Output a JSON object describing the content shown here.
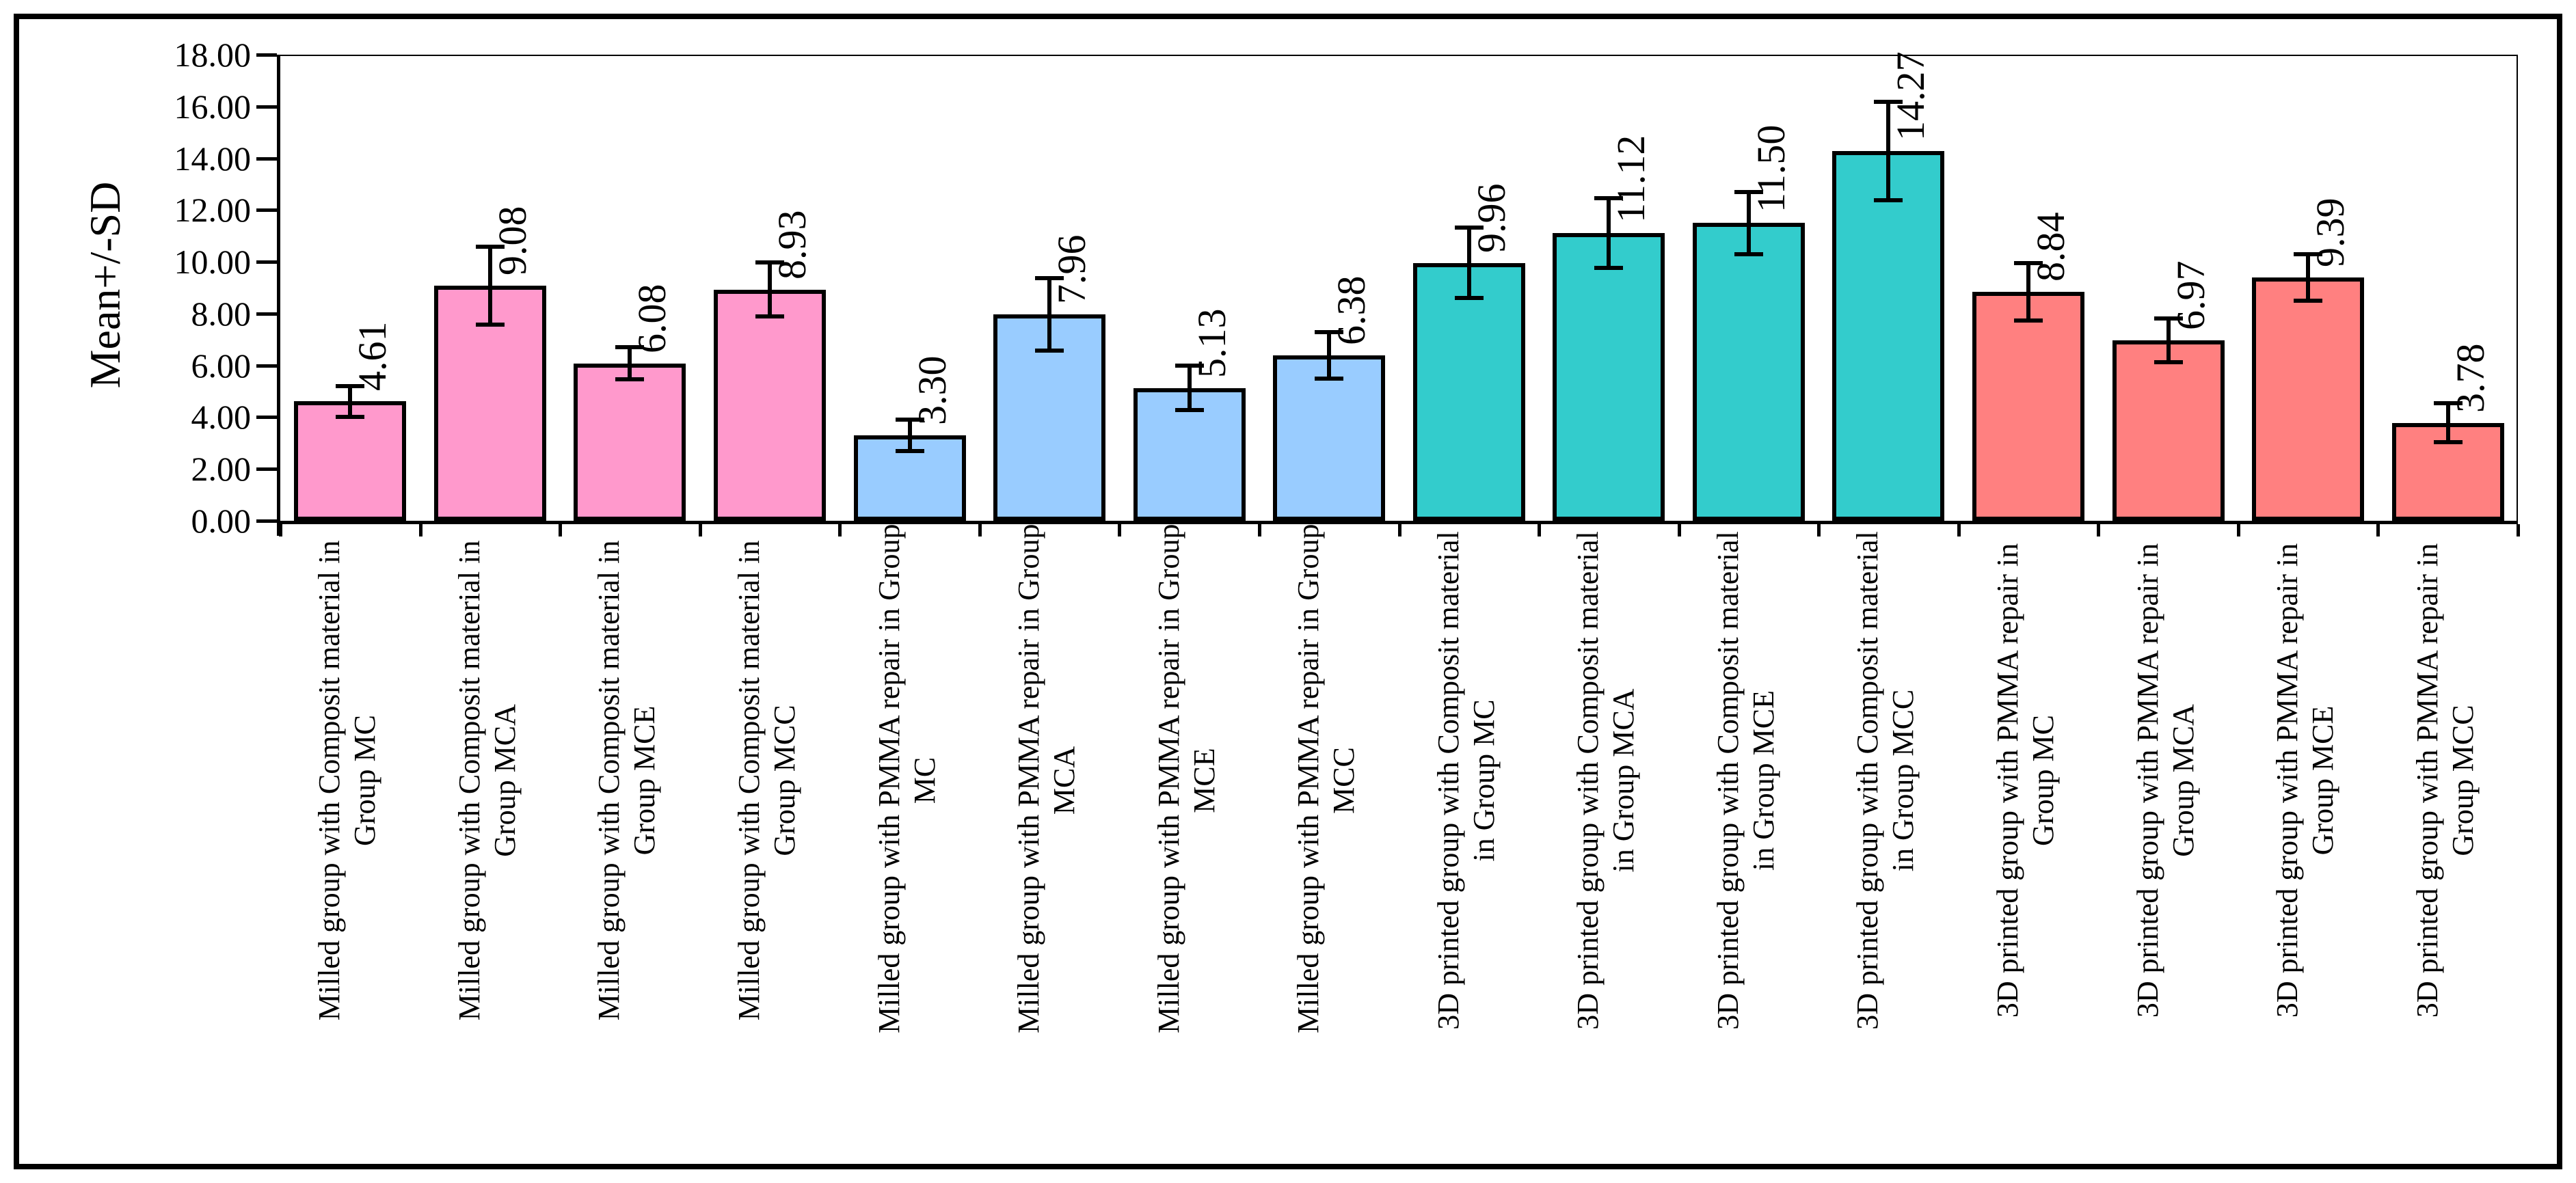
{
  "figure": {
    "background": "#FFFFFF",
    "border_color": "#000000"
  },
  "chart_data": {
    "type": "bar",
    "title": "",
    "xlabel": "",
    "ylabel": "Mean+/-SD",
    "ylim": [
      0,
      18
    ],
    "ytick_step": 2,
    "ytick_labels": [
      "0.00",
      "2.00",
      "4.00",
      "6.00",
      "8.00",
      "10.00",
      "12.00",
      "14.00",
      "16.00",
      "18.00"
    ],
    "grid": "off",
    "legend": "none",
    "error_bars": true,
    "bar_outline_color": "#000000",
    "group_colors": {
      "milled_composit": "#FF99CC",
      "milled_pmma": "#99CCFF",
      "printed_composit": "#33CCCC",
      "printed_pmma": "#FF8080"
    },
    "bars": [
      {
        "label_line1": "Milled group with Composit material in",
        "label_line2": "Group MC",
        "value": 4.61,
        "value_label": "4.61",
        "sd": 0.6,
        "color": "#FF99CC"
      },
      {
        "label_line1": "Milled group with Composit material in",
        "label_line2": "Group MCA",
        "value": 9.08,
        "value_label": "9.08",
        "sd": 1.5,
        "color": "#FF99CC"
      },
      {
        "label_line1": "Milled group with Composit material in",
        "label_line2": "Group MCE",
        "value": 6.08,
        "value_label": "6.08",
        "sd": 0.62,
        "color": "#FF99CC"
      },
      {
        "label_line1": "Milled group with Composit material in",
        "label_line2": "Group MCC",
        "value": 8.93,
        "value_label": "8.93",
        "sd": 1.05,
        "color": "#FF99CC"
      },
      {
        "label_line1": "Milled group with PMMA repair in Group",
        "label_line2": "MC",
        "value": 3.3,
        "value_label": "3.30",
        "sd": 0.6,
        "color": "#99CCFF"
      },
      {
        "label_line1": "Milled group with PMMA repair in Group",
        "label_line2": "MCA",
        "value": 7.96,
        "value_label": "7.96",
        "sd": 1.4,
        "color": "#99CCFF"
      },
      {
        "label_line1": "Milled group with PMMA repair in Group",
        "label_line2": "MCE",
        "value": 5.13,
        "value_label": "5.13",
        "sd": 0.85,
        "color": "#99CCFF"
      },
      {
        "label_line1": "Milled group with PMMA repair in Group",
        "label_line2": "MCC",
        "value": 6.38,
        "value_label": "6.38",
        "sd": 0.9,
        "color": "#99CCFF"
      },
      {
        "label_line1": "3D printed group with Composit material",
        "label_line2": "in Group MC",
        "value": 9.96,
        "value_label": "9.96",
        "sd": 1.35,
        "color": "#33CCCC"
      },
      {
        "label_line1": "3D printed group with Composit material",
        "label_line2": "in Group MCA",
        "value": 11.12,
        "value_label": "11.12",
        "sd": 1.35,
        "color": "#33CCCC"
      },
      {
        "label_line1": "3D printed group with Composit material",
        "label_line2": "in Group MCE",
        "value": 11.5,
        "value_label": "11.50",
        "sd": 1.2,
        "color": "#33CCCC"
      },
      {
        "label_line1": "3D printed group with Composit material",
        "label_line2": "in Group MCC",
        "value": 14.27,
        "value_label": "14.27",
        "sd": 1.9,
        "color": "#33CCCC"
      },
      {
        "label_line1": "3D printed group with PMMA repair in",
        "label_line2": "Group MC",
        "value": 8.84,
        "value_label": "8.84",
        "sd": 1.1,
        "color": "#FF8080"
      },
      {
        "label_line1": "3D printed group with PMMA repair in",
        "label_line2": "Group MCA",
        "value": 6.97,
        "value_label": "6.97",
        "sd": 0.85,
        "color": "#FF8080"
      },
      {
        "label_line1": "3D printed group with PMMA repair in",
        "label_line2": "Group MCE",
        "value": 9.39,
        "value_label": "9.39",
        "sd": 0.9,
        "color": "#FF8080"
      },
      {
        "label_line1": "3D printed group with PMMA repair in",
        "label_line2": "Group MCC",
        "value": 3.78,
        "value_label": "3.78",
        "sd": 0.75,
        "color": "#FF8080"
      }
    ]
  }
}
